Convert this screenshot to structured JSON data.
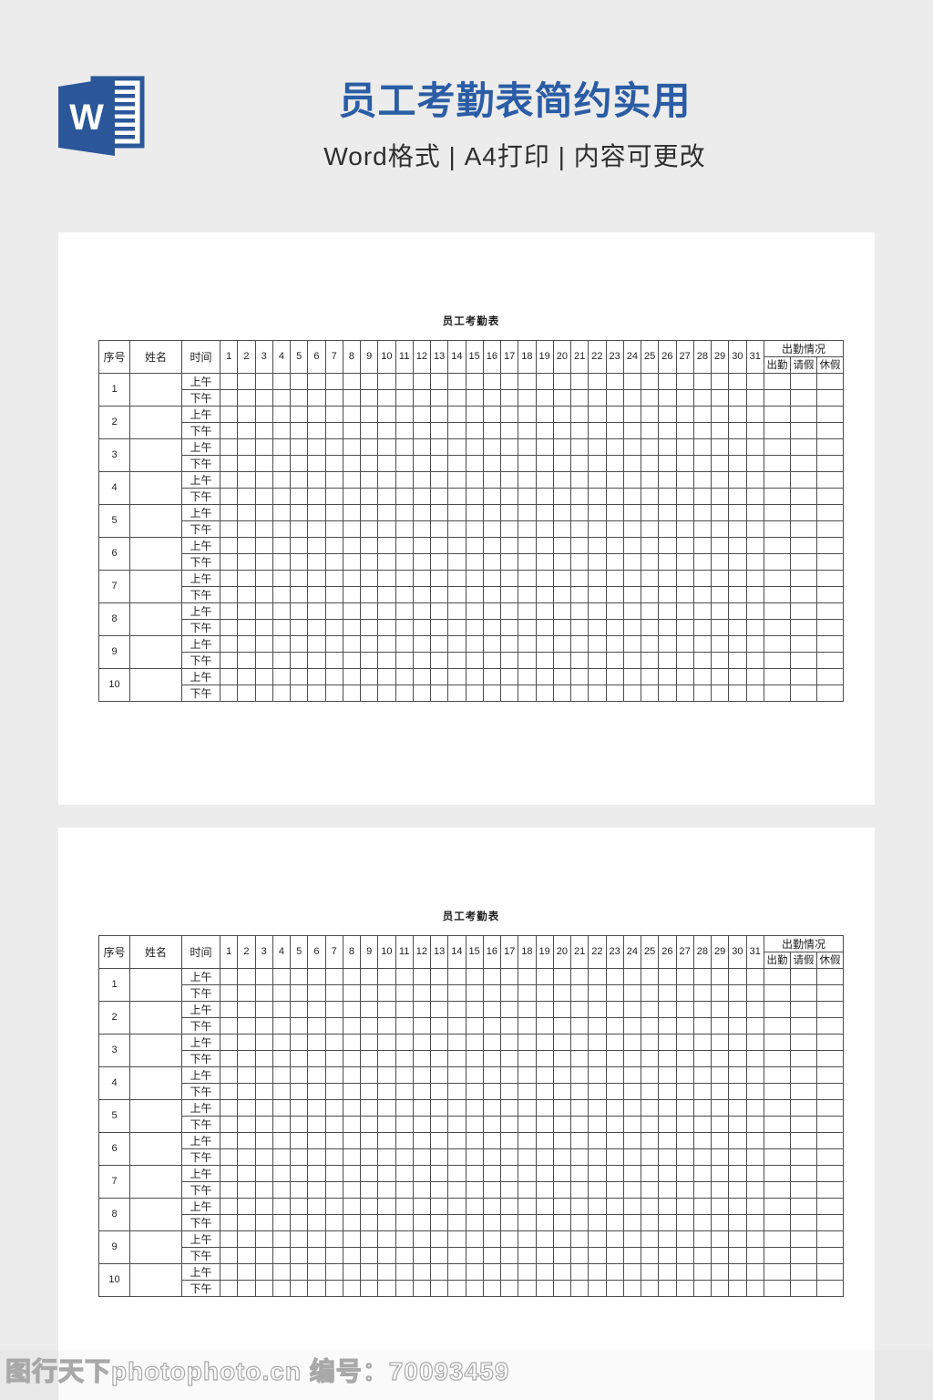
{
  "header": {
    "title": "员工考勤表简约实用",
    "subtitle": "Word格式 | A4打印 | 内容可更改",
    "icon_letter": "W"
  },
  "document": {
    "table_title": "员工考勤表",
    "columns": {
      "index": "序号",
      "name": "姓名",
      "time": "时间"
    },
    "days": [
      1,
      2,
      3,
      4,
      5,
      6,
      7,
      8,
      9,
      10,
      11,
      12,
      13,
      14,
      15,
      16,
      17,
      18,
      19,
      20,
      21,
      22,
      23,
      24,
      25,
      26,
      27,
      28,
      29,
      30,
      31
    ],
    "attendance": {
      "group": "出勤情况",
      "subs": [
        "出勤",
        "请假",
        "休假"
      ]
    },
    "time_labels": [
      "上午",
      "下午"
    ],
    "row_numbers": [
      1,
      2,
      3,
      4,
      5,
      6,
      7,
      8,
      9,
      10
    ],
    "page_count": 2
  },
  "watermark": {
    "text": "图行天下photophoto.cn 编号：70093459"
  },
  "colors": {
    "background": "#ececec",
    "page_background": "#ffffff",
    "accent_blue": "#2b5da5",
    "word_icon_blue": "#2b579a",
    "table_border": "#4d4d4d"
  }
}
